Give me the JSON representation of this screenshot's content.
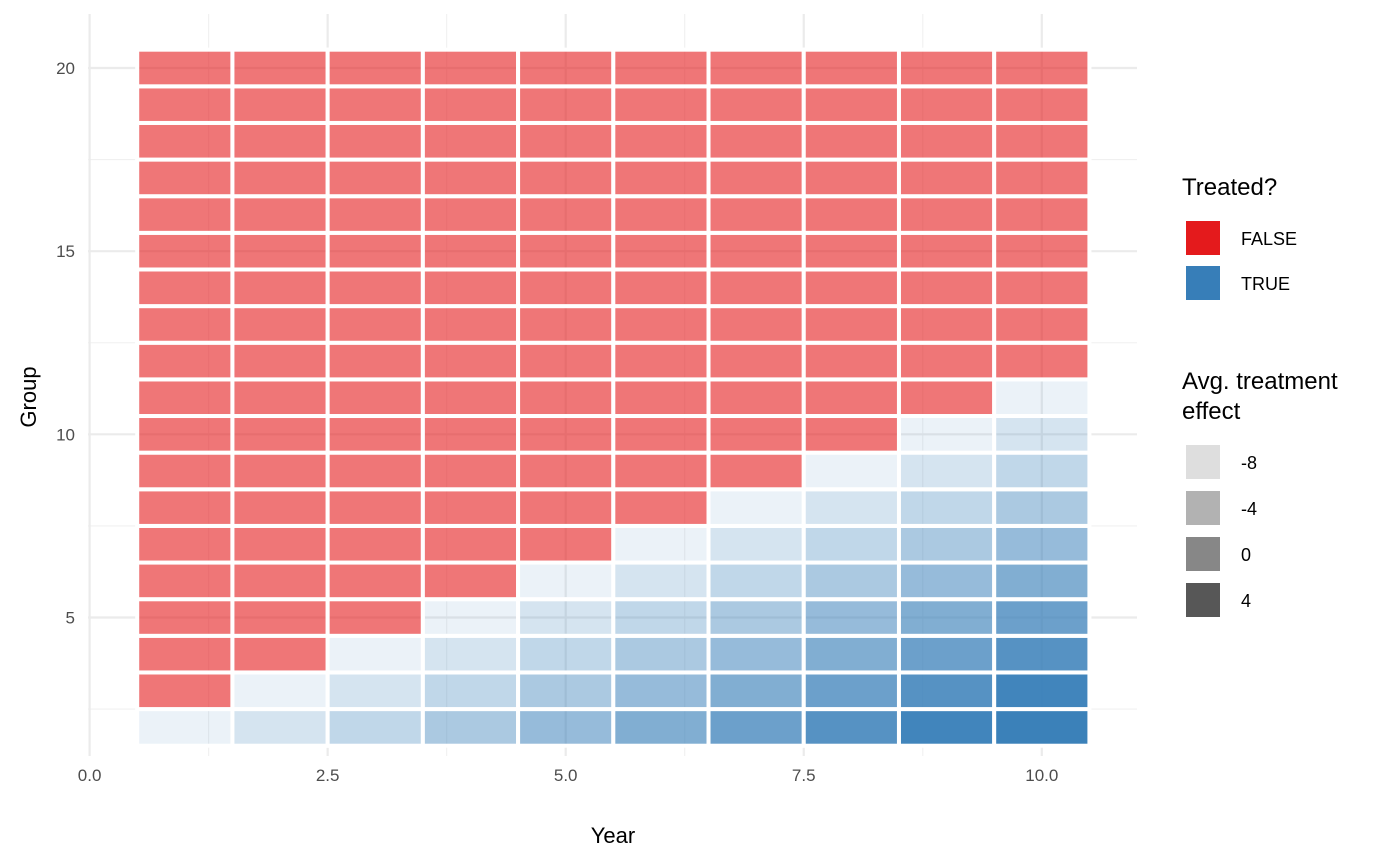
{
  "chart_data": {
    "type": "heatmap",
    "title": "",
    "xlabel": "Year",
    "ylabel": "Group",
    "xlim": [
      0,
      10.5
    ],
    "ylim": [
      1.5,
      20.5
    ],
    "x_ticks": [
      0,
      2.5,
      5,
      7.5,
      10
    ],
    "x_tick_labels": [
      "0.0",
      "2.5",
      "5.0",
      "7.5",
      "10.0"
    ],
    "y_ticks": [
      5,
      10,
      15,
      20
    ],
    "y_tick_labels": [
      "5",
      "10",
      "15",
      "20"
    ],
    "grid": true,
    "years": [
      1,
      2,
      3,
      4,
      5,
      6,
      7,
      8,
      9,
      10
    ],
    "groups": [
      2,
      3,
      4,
      5,
      6,
      7,
      8,
      9,
      10,
      11,
      12,
      13,
      14,
      15,
      16,
      17,
      18,
      19,
      20
    ],
    "treatment_rule": "group g treated from year (g - 1) onward; groups 11-20 never treated",
    "colors": {
      "FALSE": "#E41A1C",
      "TRUE": "#377EB8"
    },
    "legend": {
      "position": "right",
      "fill": {
        "title": "Treated?",
        "entries": [
          {
            "label": "FALSE",
            "color": "#E41A1C"
          },
          {
            "label": "TRUE",
            "color": "#377EB8"
          }
        ]
      },
      "alpha": {
        "title_line1": "Avg. treatment",
        "title_line2": "effect",
        "entries": [
          {
            "label": "-8",
            "value": -8
          },
          {
            "label": "-4",
            "value": -4
          },
          {
            "label": "0",
            "value": 0
          },
          {
            "label": "4",
            "value": 4
          }
        ]
      }
    }
  }
}
